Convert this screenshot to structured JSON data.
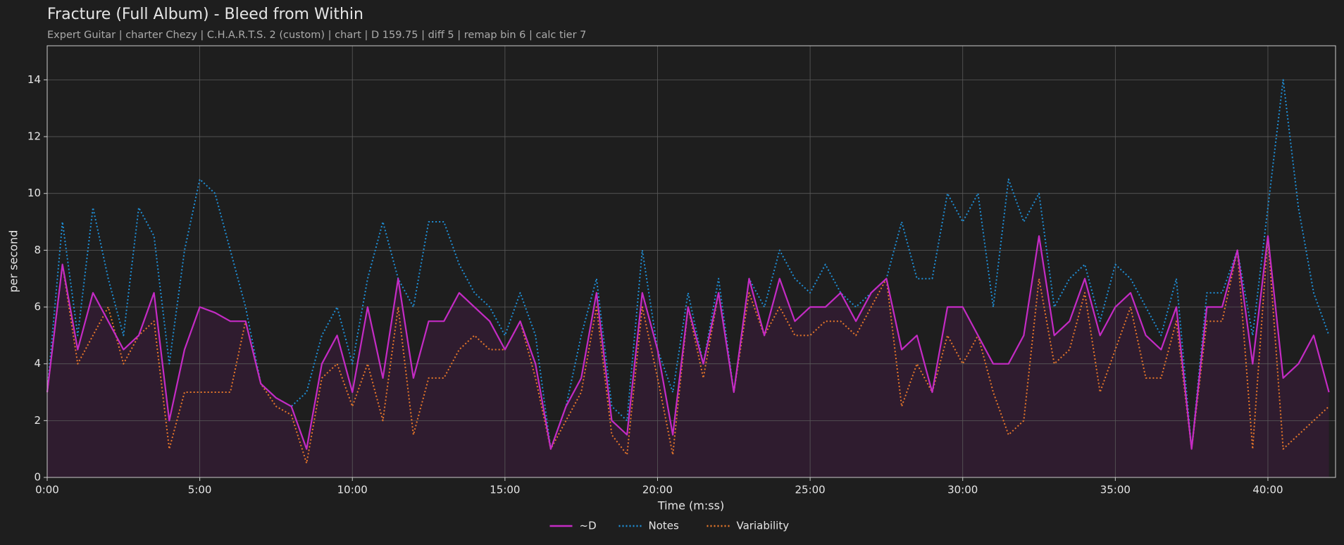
{
  "chart_data": {
    "type": "line",
    "title": "Fracture (Full Album) - Bleed from Within",
    "subtitle": "Expert Guitar  |  charter Chezy  |  C.H.A.R.T.S. 2 (custom)  |  chart  |  D 159.75  |  diff 5  |  remap bin 6  |  calc tier 7",
    "xlabel": "Time (m:ss)",
    "ylabel": "per second",
    "grid": true,
    "legend": "bottom",
    "xlim": [
      0,
      2533
    ],
    "ylim": [
      0,
      15.2
    ],
    "xticks": [
      {
        "value": 0,
        "label": "0:00"
      },
      {
        "value": 300,
        "label": "5:00"
      },
      {
        "value": 600,
        "label": "10:00"
      },
      {
        "value": 900,
        "label": "15:00"
      },
      {
        "value": 1200,
        "label": "20:00"
      },
      {
        "value": 1500,
        "label": "25:00"
      },
      {
        "value": 1800,
        "label": "30:00"
      },
      {
        "value": 2100,
        "label": "35:00"
      },
      {
        "value": 2400,
        "label": "40:00"
      }
    ],
    "yticks": [
      0,
      2,
      4,
      6,
      8,
      10,
      12,
      14
    ],
    "x": [
      0,
      30,
      60,
      90,
      120,
      150,
      180,
      210,
      240,
      270,
      300,
      330,
      360,
      390,
      420,
      450,
      480,
      510,
      540,
      570,
      600,
      630,
      660,
      690,
      720,
      750,
      780,
      810,
      840,
      870,
      900,
      930,
      960,
      990,
      1020,
      1050,
      1080,
      1110,
      1140,
      1170,
      1200,
      1230,
      1260,
      1290,
      1320,
      1350,
      1380,
      1410,
      1440,
      1470,
      1500,
      1530,
      1560,
      1590,
      1620,
      1650,
      1680,
      1710,
      1740,
      1770,
      1800,
      1830,
      1860,
      1890,
      1920,
      1950,
      1980,
      2010,
      2040,
      2070,
      2100,
      2130,
      2160,
      2190,
      2220,
      2250,
      2280,
      2310,
      2340,
      2370,
      2400,
      2430,
      2460,
      2490,
      2520
    ],
    "series": [
      {
        "name": "~D",
        "color": "#c42bc4",
        "style": "solid",
        "fill": "#2f1c2f",
        "values": [
          3,
          7.5,
          4.5,
          6.5,
          5.5,
          4.5,
          5,
          6.5,
          2,
          4.5,
          6,
          5.8,
          5.5,
          5.5,
          3.3,
          2.8,
          2.5,
          1,
          4,
          5,
          3,
          6,
          3.5,
          7,
          3.5,
          5.5,
          5.5,
          6.5,
          6,
          5.5,
          4.5,
          5.5,
          4,
          1,
          2.5,
          3.5,
          6.5,
          2,
          1.5,
          6.5,
          4.5,
          1.5,
          6,
          4,
          6.5,
          3,
          7,
          5,
          7,
          5.5,
          6,
          6,
          6.5,
          5.5,
          6.5,
          7,
          4.5,
          5,
          3,
          6,
          6,
          5,
          4,
          4,
          5,
          8.5,
          5,
          5.5,
          7,
          5,
          6,
          6.5,
          5,
          4.5,
          6,
          1,
          6,
          6,
          8,
          4,
          8.5,
          3.5,
          4,
          5,
          3
        ]
      },
      {
        "name": "Notes",
        "color": "#1f8fd6",
        "style": "dotted",
        "values": [
          3,
          9,
          5,
          9.5,
          7,
          5,
          9.5,
          8.5,
          4,
          8,
          10.5,
          10,
          8,
          6,
          3.3,
          2.8,
          2.5,
          3,
          5,
          6,
          4,
          7,
          9,
          7,
          6,
          9,
          9,
          7.5,
          6.5,
          6,
          5,
          6.5,
          5,
          1,
          2.5,
          5,
          7,
          2.5,
          2,
          8,
          4.5,
          3,
          6.5,
          4,
          7,
          3,
          7,
          6,
          8,
          7,
          6.5,
          7.5,
          6.5,
          6,
          6.5,
          7,
          9,
          7,
          7,
          10,
          9,
          10,
          6,
          10.5,
          9,
          10,
          6,
          7,
          7.5,
          5.5,
          7.5,
          7,
          6,
          5,
          7,
          1,
          6.5,
          6.5,
          8,
          5,
          9.5,
          14,
          9.5,
          6.5,
          5
        ]
      },
      {
        "name": "Variability",
        "color": "#e8782a",
        "style": "dotted",
        "values": [
          3,
          7.5,
          4,
          5,
          6,
          4,
          5,
          5.5,
          1,
          3,
          3,
          3,
          3,
          5.5,
          3.3,
          2.5,
          2.2,
          0.5,
          3.5,
          4,
          2.5,
          4,
          2,
          6,
          1.5,
          3.5,
          3.5,
          4.5,
          5,
          4.5,
          4.5,
          5.5,
          3.5,
          1,
          2,
          3,
          6,
          1.5,
          0.8,
          6,
          3.5,
          0.8,
          6,
          3.5,
          6.5,
          3,
          6.5,
          5,
          6,
          5,
          5,
          5.5,
          5.5,
          5,
          6,
          7,
          2.5,
          4,
          3,
          5,
          4,
          5,
          3,
          1.5,
          2,
          7,
          4,
          4.5,
          6.5,
          3,
          4.5,
          6,
          3.5,
          3.5,
          5.5,
          1,
          5.5,
          5.5,
          8,
          1,
          8.5,
          1,
          1.5,
          2,
          2.5
        ]
      }
    ]
  }
}
